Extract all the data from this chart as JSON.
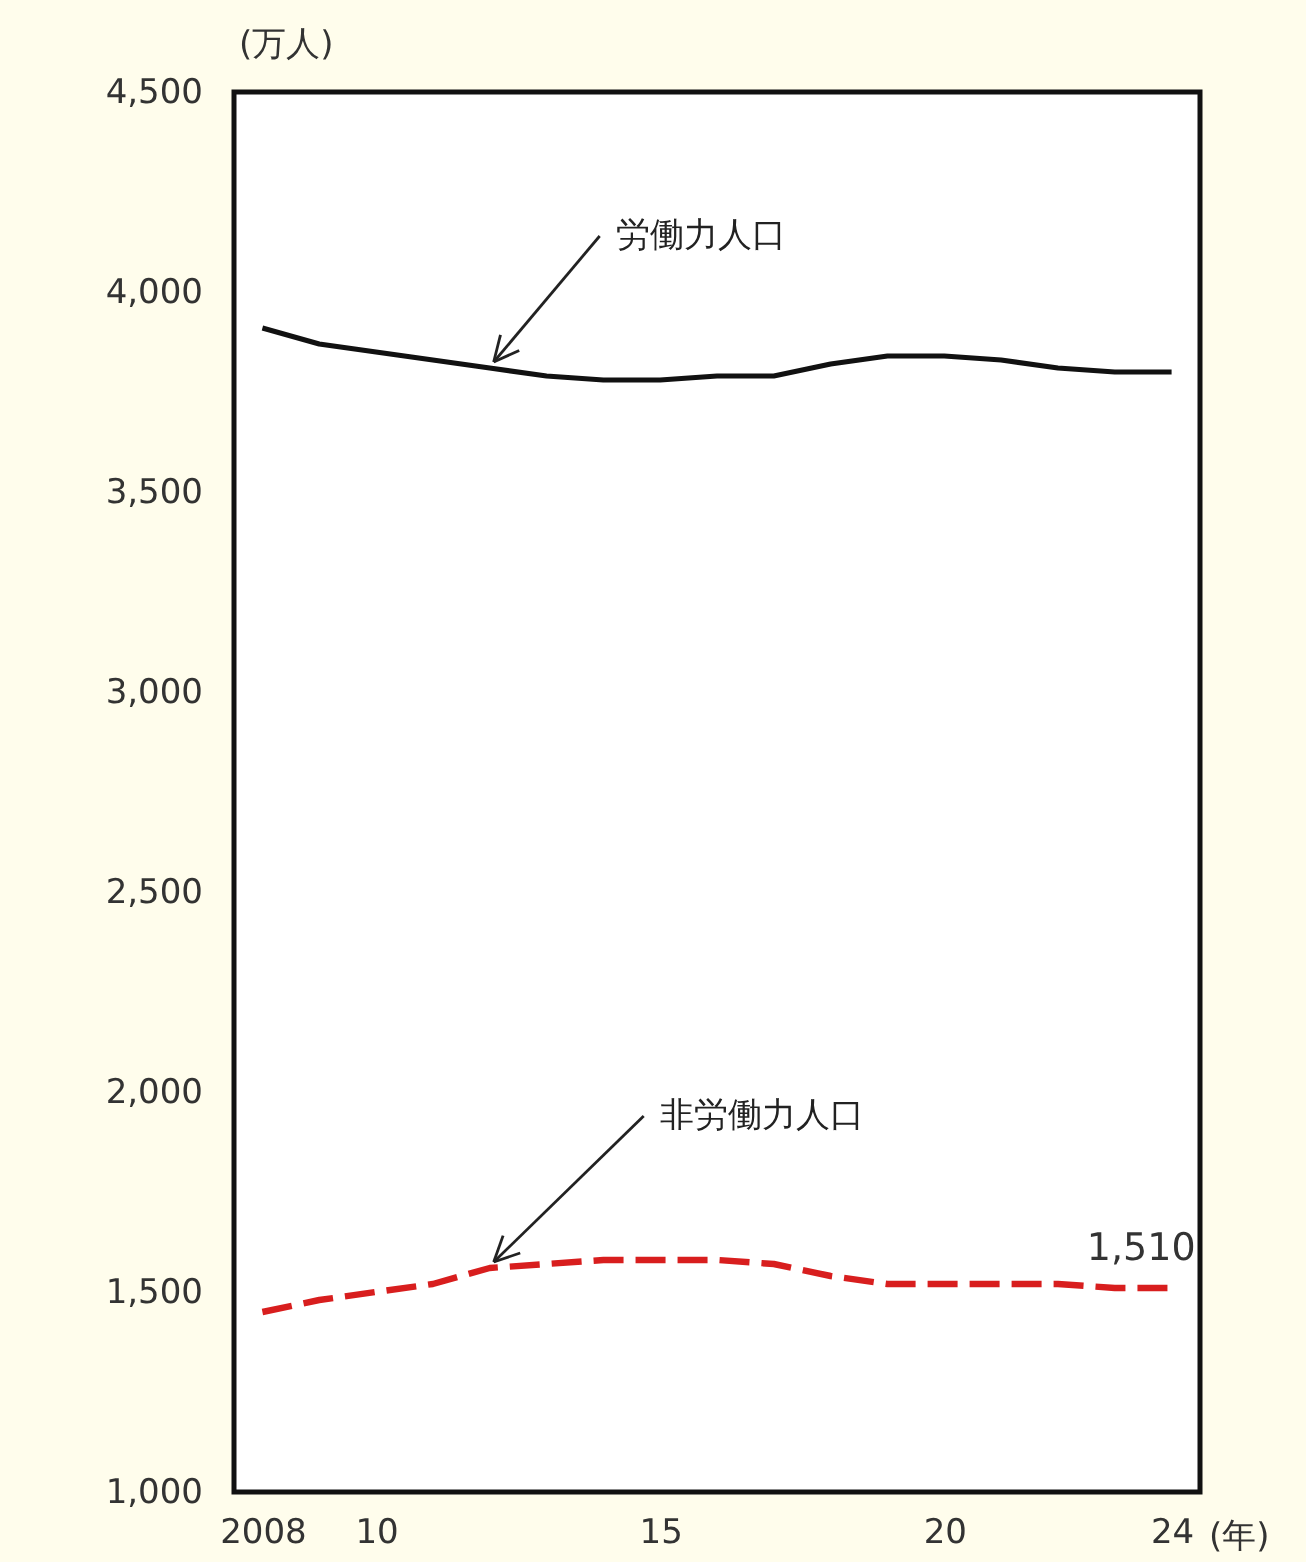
{
  "chart_data": {
    "type": "line",
    "xlabel": "(年)",
    "ylabel": "(万人)",
    "x": [
      2008,
      2009,
      2010,
      2011,
      2012,
      2013,
      2014,
      2015,
      2016,
      2017,
      2018,
      2019,
      2020,
      2021,
      2022,
      2023,
      2024
    ],
    "series": [
      {
        "color": "#111111",
        "line_style": "solid",
        "values": [
          3910,
          3870,
          3850,
          3830,
          3810,
          3790,
          3780,
          3780,
          3790,
          3790,
          3820,
          3840,
          3840,
          3830,
          3810,
          3800,
          3800
        ]
      },
      {
        "color": "#d81e1e",
        "line_style": "dashed",
        "values": [
          1450,
          1480,
          1500,
          1520,
          1560,
          1570,
          1580,
          1580,
          1580,
          1570,
          1540,
          1520,
          1520,
          1520,
          1520,
          1510,
          1510
        ],
        "value_labels": [
          null,
          null,
          null,
          null,
          null,
          null,
          null,
          null,
          null,
          null,
          null,
          null,
          null,
          null,
          null,
          null,
          "1,510"
        ]
      }
    ],
    "xlim": [
      2007.5,
      2024.5
    ],
    "xticks": [
      {
        "value": 2008,
        "label": "2008"
      },
      {
        "value": 2010,
        "label": "10"
      },
      {
        "value": 2015,
        "label": "15"
      },
      {
        "value": 2020,
        "label": "20"
      },
      {
        "value": 2024,
        "label": "24"
      }
    ],
    "ylim": [
      1000,
      4500
    ],
    "yticks": [
      {
        "value": 1000,
        "label": "1,000"
      },
      {
        "value": 1500,
        "label": "1,500"
      },
      {
        "value": 2000,
        "label": "2,000"
      },
      {
        "value": 2500,
        "label": "2,500"
      },
      {
        "value": 3000,
        "label": "3,000"
      },
      {
        "value": 3500,
        "label": "3,500"
      },
      {
        "value": 4000,
        "label": "4,000"
      },
      {
        "value": 4500,
        "label": "4,500"
      }
    ],
    "grid": false,
    "annotations": [
      {
        "text": "労働力人口",
        "x": 2012,
        "y": 3810
      },
      {
        "text": "非労働力人口",
        "x": 2012,
        "y": 1560
      }
    ]
  }
}
